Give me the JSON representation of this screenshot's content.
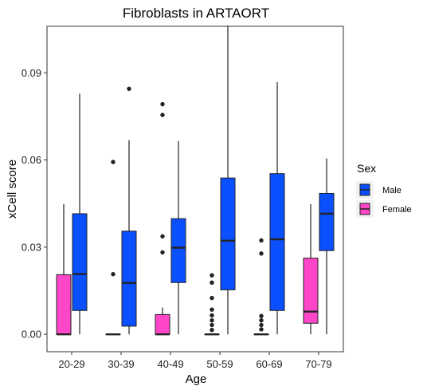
{
  "chart_data": {
    "type": "boxplot",
    "title": "Fibroblasts in ARTAORT",
    "xlabel": "Age",
    "ylabel": "xCell score",
    "ylim": [
      -0.006,
      0.106
    ],
    "yticks": [
      0.0,
      0.03,
      0.06,
      0.09
    ],
    "ytick_labels": [
      "0.00",
      "0.03",
      "0.06",
      "0.09"
    ],
    "categories": [
      "20-29",
      "30-39",
      "40-49",
      "50-59",
      "60-69",
      "70-79"
    ],
    "legend": {
      "title": "Sex",
      "position": "right",
      "entries": [
        {
          "key": "Male",
          "label": "Male",
          "color": "#0a50ff"
        },
        {
          "key": "Female",
          "label": "Female",
          "color": "#ff45c8"
        }
      ]
    },
    "grid": false,
    "series": [
      {
        "name": "Female",
        "color": "#ff45c8",
        "boxes": [
          {
            "category": "20-29",
            "min": 0.0,
            "q1": 0.0,
            "median": 0.0,
            "q3": 0.0205,
            "max": 0.0448,
            "outliers": []
          },
          {
            "category": "30-39",
            "min": 0.0,
            "q1": 0.0,
            "median": 0.0,
            "q3": 0.0,
            "max": 0.0,
            "outliers": [
              0.0593,
              0.0207
            ]
          },
          {
            "category": "40-49",
            "min": 0.0,
            "q1": 0.0,
            "median": 0.0,
            "q3": 0.0068,
            "max": 0.0092,
            "outliers": [
              0.0337,
              0.0282,
              0.0792,
              0.0755
            ]
          },
          {
            "category": "50-59",
            "min": 0.0,
            "q1": 0.0,
            "median": 0.0,
            "q3": 0.0,
            "max": 0.0,
            "outliers": [
              0.0203,
              0.0178,
              0.0125,
              0.0085,
              0.0065,
              0.0048,
              0.0032,
              0.0015
            ]
          },
          {
            "category": "60-69",
            "min": 0.0,
            "q1": 0.0,
            "median": 0.0,
            "q3": 0.0,
            "max": 0.0,
            "outliers": [
              0.0323,
              0.0278,
              0.0063,
              0.0048,
              0.0032,
              0.0017
            ]
          },
          {
            "category": "70-79",
            "min": 0.0,
            "q1": 0.0038,
            "median": 0.0078,
            "q3": 0.0262,
            "max": 0.0448,
            "outliers": []
          }
        ]
      },
      {
        "name": "Male",
        "color": "#0a50ff",
        "boxes": [
          {
            "category": "20-29",
            "min": 0.0,
            "q1": 0.0082,
            "median": 0.0207,
            "q3": 0.0415,
            "max": 0.0828,
            "outliers": []
          },
          {
            "category": "30-39",
            "min": 0.0,
            "q1": 0.0028,
            "median": 0.0177,
            "q3": 0.0355,
            "max": 0.0668,
            "outliers": [
              0.0845
            ]
          },
          {
            "category": "40-49",
            "min": 0.0,
            "q1": 0.0178,
            "median": 0.0298,
            "q3": 0.0398,
            "max": 0.0665,
            "outliers": []
          },
          {
            "category": "50-59",
            "min": 0.0,
            "q1": 0.0153,
            "median": 0.0322,
            "q3": 0.0538,
            "max": 0.1062,
            "outliers": []
          },
          {
            "category": "60-69",
            "min": 0.0,
            "q1": 0.0082,
            "median": 0.0327,
            "q3": 0.0553,
            "max": 0.0868,
            "outliers": []
          },
          {
            "category": "70-79",
            "min": 0.0,
            "q1": 0.0288,
            "median": 0.0415,
            "q3": 0.0485,
            "max": 0.0605,
            "outliers": []
          }
        ]
      }
    ]
  }
}
